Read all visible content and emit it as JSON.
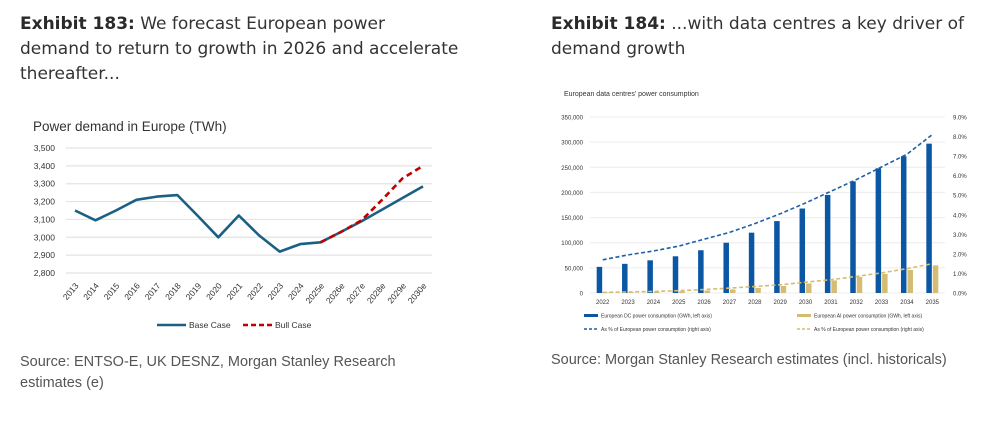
{
  "exhibit183": {
    "label": "Exhibit 183:",
    "title": " We forecast European power demand to return to growth in 2026 and accelerate thereafter...",
    "source": "Source: ENTSO-E, UK DESNZ, Morgan Stanley Research estimates (e)"
  },
  "exhibit184": {
    "label": "Exhibit 184:",
    "title": " ...with data centres a key driver of demand growth",
    "source": "Source: Morgan Stanley Research estimates (incl. historicals)"
  },
  "chart_data": [
    {
      "type": "line",
      "title": "Power demand in Europe (TWh)",
      "xlabel": "",
      "ylabel": "",
      "ylim": [
        2800,
        3500
      ],
      "yticks": [
        2800,
        2900,
        3000,
        3100,
        3200,
        3300,
        3400,
        3500
      ],
      "ytick_labels": [
        "2,800",
        "2,900",
        "3,000",
        "3,100",
        "3,200",
        "3,300",
        "3,400",
        "3,500"
      ],
      "grid": true,
      "legend_position": "bottom",
      "categories": [
        "2013",
        "2014",
        "2015",
        "2016",
        "2017",
        "2018",
        "2019",
        "2020",
        "2021",
        "2022",
        "2023",
        "2024",
        "2025e",
        "2026e",
        "2027e",
        "2028e",
        "2029e",
        "2030e"
      ],
      "series": [
        {
          "name": "Base Case",
          "color": "#1c5f84",
          "style": "solid",
          "values": [
            3150,
            3095,
            3150,
            3210,
            3228,
            3236,
            3120,
            3000,
            3122,
            3010,
            2920,
            2962,
            2972,
            3030,
            3090,
            3155,
            3220,
            3285
          ]
        },
        {
          "name": "Bull Case",
          "color": "#c00000",
          "style": "dashed",
          "values": [
            null,
            null,
            null,
            null,
            null,
            null,
            null,
            null,
            null,
            null,
            null,
            null,
            2972,
            3030,
            3095,
            3210,
            3330,
            3400
          ]
        }
      ]
    },
    {
      "type": "bar",
      "title": "European data centres' power consumption",
      "xlabel": "",
      "ylabel": "",
      "ylim": [
        0,
        350000
      ],
      "yticks_labels": [
        "0",
        "50,000",
        "100,000",
        "150,000",
        "200,000",
        "250,000",
        "300,000",
        "350,000"
      ],
      "y2lim": [
        0,
        9
      ],
      "y2ticks_labels": [
        "0.0%",
        "1.0%",
        "2.0%",
        "3.0%",
        "4.0%",
        "5.0%",
        "6.0%",
        "7.0%",
        "8.0%",
        "9.0%"
      ],
      "grid": true,
      "legend_position": "bottom",
      "categories": [
        "2022",
        "2023",
        "2024",
        "2025",
        "2026",
        "2027",
        "2028",
        "2029",
        "2030",
        "2031",
        "2032",
        "2033",
        "2034",
        "2035"
      ],
      "series": [
        {
          "name": "European DC power consumption (GWh, left axis)",
          "kind": "bar",
          "axis": "left",
          "color": "#0b57a4",
          "values": [
            52000,
            58000,
            65000,
            73000,
            85000,
            100000,
            120000,
            143000,
            168000,
            195000,
            222000,
            248000,
            272000,
            297000
          ]
        },
        {
          "name": "European AI power consumption (GWh, left axis)",
          "kind": "bar",
          "axis": "left",
          "color": "#d4bd72",
          "values": [
            1000,
            1500,
            2500,
            3500,
            5000,
            7000,
            10000,
            14000,
            19000,
            25000,
            32000,
            38000,
            46000,
            55000
          ]
        },
        {
          "name": "As % of European power consumption (right axis)",
          "kind": "line",
          "axis": "right",
          "color": "#1f5fa8",
          "style": "dashed",
          "values": [
            1.7,
            1.95,
            2.15,
            2.4,
            2.75,
            3.1,
            3.55,
            4.05,
            4.6,
            5.2,
            5.8,
            6.45,
            7.1,
            8.1
          ]
        },
        {
          "name": "As % of European power consumption (right axis)",
          "kind": "line",
          "axis": "right",
          "color": "#d4bd72",
          "style": "dashed",
          "values": [
            0.03,
            0.05,
            0.08,
            0.12,
            0.18,
            0.25,
            0.33,
            0.42,
            0.55,
            0.68,
            0.85,
            1.03,
            1.25,
            1.5
          ]
        }
      ]
    }
  ]
}
